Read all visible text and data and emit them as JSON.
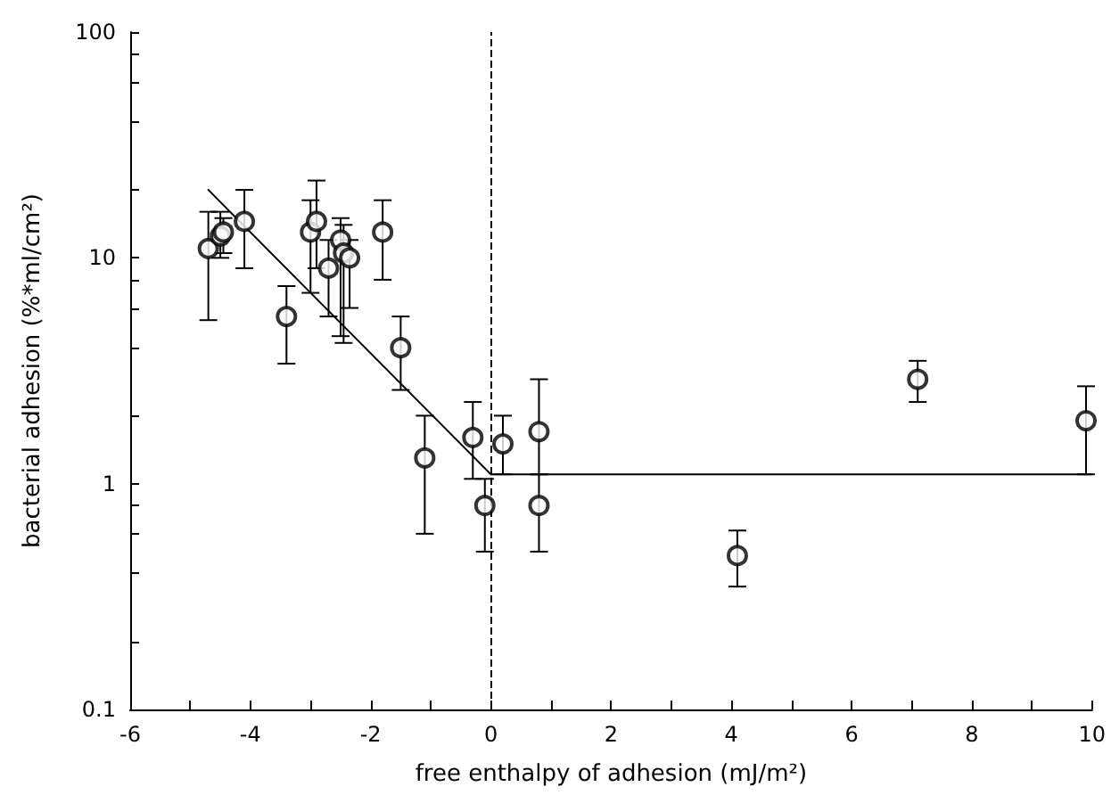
{
  "chart_data": {
    "type": "scatter",
    "xlabel": "free enthalpy of adhesion (mJ/m²)",
    "ylabel": "bacterial adhesion (%*ml/cm²)",
    "xlim": [
      -6,
      10
    ],
    "xticks": [
      -6,
      {
        "value": -5,
        "label": null
      },
      -4,
      {
        "value": -3,
        "label": null
      },
      -2,
      {
        "value": -1,
        "label": null
      },
      0,
      {
        "value": 1,
        "label": null
      },
      2,
      {
        "value": 3,
        "label": null
      },
      4,
      {
        "value": 5,
        "label": null
      },
      6,
      {
        "value": 7,
        "label": null
      },
      8,
      {
        "value": 9,
        "label": null
      },
      10
    ],
    "ylim": [
      0.1,
      100
    ],
    "yticks": [
      0.1,
      {
        "value": 0.2,
        "label": null
      },
      {
        "value": 0.4,
        "label": null
      },
      {
        "value": 0.6,
        "label": null
      },
      {
        "value": 0.8,
        "label": null
      },
      1,
      {
        "value": 2,
        "label": null
      },
      {
        "value": 4,
        "label": null
      },
      {
        "value": 6,
        "label": null
      },
      {
        "value": 8,
        "label": null
      },
      10,
      {
        "value": 20,
        "label": null
      },
      {
        "value": 40,
        "label": null
      },
      {
        "value": 60,
        "label": null
      },
      {
        "value": 80,
        "label": null
      },
      100
    ],
    "log": "y",
    "grid": false,
    "marker": "circle",
    "series": [
      {
        "color": "#000000",
        "x": [
          -4.7,
          -4.5,
          -4.45,
          -4.1,
          -3.4,
          -3.0,
          -2.9,
          -2.7,
          -2.5,
          -2.45,
          -2.35,
          -1.8,
          -1.5,
          -1.1,
          -0.3,
          -0.1,
          0.2,
          0.8,
          0.8,
          4.1,
          7.1,
          9.9
        ],
        "values": [
          11,
          12.5,
          13,
          14.5,
          5.5,
          13,
          14.5,
          9,
          12,
          10.5,
          10,
          13,
          4,
          1.3,
          1.6,
          0.8,
          1.5,
          1.7,
          0.8,
          0.48,
          2.9,
          1.9
        ],
        "errors": [
          [
            5.3,
            16
          ],
          [
            10,
            16
          ],
          [
            10.5,
            15
          ],
          [
            9,
            20
          ],
          [
            3.4,
            7.5
          ],
          [
            7,
            18
          ],
          [
            9,
            22
          ],
          [
            5.5,
            12
          ],
          [
            4.5,
            15
          ],
          [
            4.2,
            14
          ],
          [
            6,
            12
          ],
          [
            8,
            18
          ],
          [
            2.6,
            5.5
          ],
          [
            0.6,
            2
          ],
          [
            1.05,
            2.3
          ],
          [
            0.5,
            1.05
          ],
          [
            1.1,
            2
          ],
          [
            1.1,
            2.9
          ],
          [
            0.5,
            1.1
          ],
          [
            0.35,
            0.62
          ],
          [
            2.3,
            3.5
          ],
          [
            1.1,
            2.7
          ]
        ]
      },
      {
        "type": "line",
        "color": "#000000",
        "marker": "none",
        "line_style": "solid",
        "x": [
          -4.7,
          0,
          10
        ],
        "values": [
          20,
          1.1,
          1.1
        ]
      }
    ],
    "ref_lines": [
      {
        "axis": "x",
        "value": 0,
        "line_style": "dashed",
        "color": "#000000"
      }
    ]
  }
}
